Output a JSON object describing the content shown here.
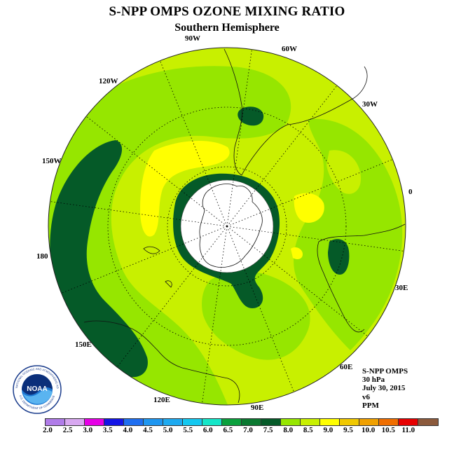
{
  "title": "S-NPP OMPS OZONE MIXING RATIO",
  "subtitle": "Southern Hemisphere",
  "longitude_labels": {
    "w90": "90W",
    "w60": "60W",
    "w30": "30W",
    "e0": "0",
    "e30": "30E",
    "e60": "60E",
    "e90": "90E",
    "e120": "120E",
    "e150": "150E",
    "e180": "180",
    "w150": "150W",
    "w120": "120W"
  },
  "info": {
    "instrument": "S-NPP OMPS",
    "level": "30 hPa",
    "date": "July 30, 2015",
    "version": "v6",
    "units": "PPM"
  },
  "logo": {
    "text": "NOAA",
    "ring_text": "NATIONAL OCEANIC AND ATMOSPHERIC ADMINISTRATION",
    "ring_text_bottom": "U.S. DEPARTMENT OF COMMERCE"
  },
  "colorbar": {
    "ticks": [
      "2.0",
      "2.5",
      "3.0",
      "3.5",
      "4.0",
      "4.5",
      "5.0",
      "5.5",
      "6.0",
      "6.5",
      "7.0",
      "7.5",
      "8.0",
      "8.5",
      "9.0",
      "9.5",
      "10.0",
      "10.5",
      "11.0"
    ],
    "colors": [
      "#b07ce8",
      "#d8a8f0",
      "#e600e6",
      "#1414e6",
      "#1e6ef0",
      "#1e96f0",
      "#1eaaf0",
      "#14c8f0",
      "#14e6c8",
      "#0aa03c",
      "#0a7830",
      "#055a28",
      "#96e600",
      "#c8f000",
      "#ffff00",
      "#f0c800",
      "#f0a000",
      "#f06e00",
      "#e60000",
      "#8c5a3c"
    ]
  },
  "map_colors": {
    "level_7_0": "#055a28",
    "level_7_5": "#96e600",
    "level_8_0": "#c8f000",
    "level_8_5": "#ffff00",
    "level_6_5": "#0a7830",
    "polar_night": "#ffffff"
  }
}
